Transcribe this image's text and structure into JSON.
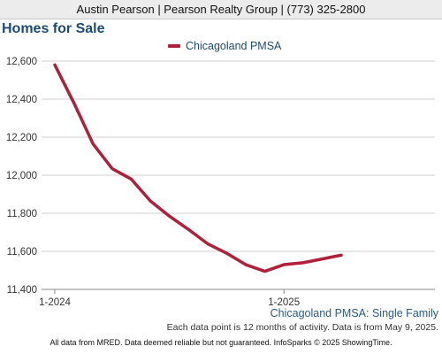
{
  "header": {
    "text": "Austin Pearson | Pearson Realty Group | (773) 325-2800"
  },
  "page_title": "Homes for Sale",
  "caption": "Chicagoland PMSA: Single Family",
  "note": "Each data point is 12 months of activity. Data is from May 9, 2025.",
  "footer": "All data from MRED. Data deemed reliable but not guaranteed. InfoSparks © 2025 ShowingTime.",
  "colors": {
    "series": "#b0203a",
    "title": "#1e4a73",
    "grid": "#d0d0d0"
  },
  "chart_data": {
    "type": "line",
    "title": "",
    "xlabel": "",
    "ylabel": "",
    "x": [
      "2024-01",
      "2024-02",
      "2024-03",
      "2024-04",
      "2024-05",
      "2024-06",
      "2024-07",
      "2024-08",
      "2024-09",
      "2024-10",
      "2024-11",
      "2024-12",
      "2025-01",
      "2025-02",
      "2025-03",
      "2025-04"
    ],
    "x_tick_labels": [
      {
        "x": "2024-01",
        "label": "1-2024"
      },
      {
        "x": "2025-01",
        "label": "1-2025"
      }
    ],
    "ylim": [
      11400,
      12600
    ],
    "y_ticks": [
      11400,
      11600,
      11800,
      12000,
      12200,
      12400,
      12600
    ],
    "y_tick_labels": [
      "11,400",
      "11,600",
      "11,800",
      "12,000",
      "12,200",
      "12,400",
      "12,600"
    ],
    "grid": true,
    "legend_position": "top-center",
    "series": [
      {
        "name": "Chicagoland PMSA",
        "values": [
          12580,
          12380,
          12165,
          12035,
          11980,
          11865,
          11785,
          11715,
          11640,
          11590,
          11530,
          11495,
          11530,
          11540,
          11560,
          11580
        ]
      }
    ]
  }
}
